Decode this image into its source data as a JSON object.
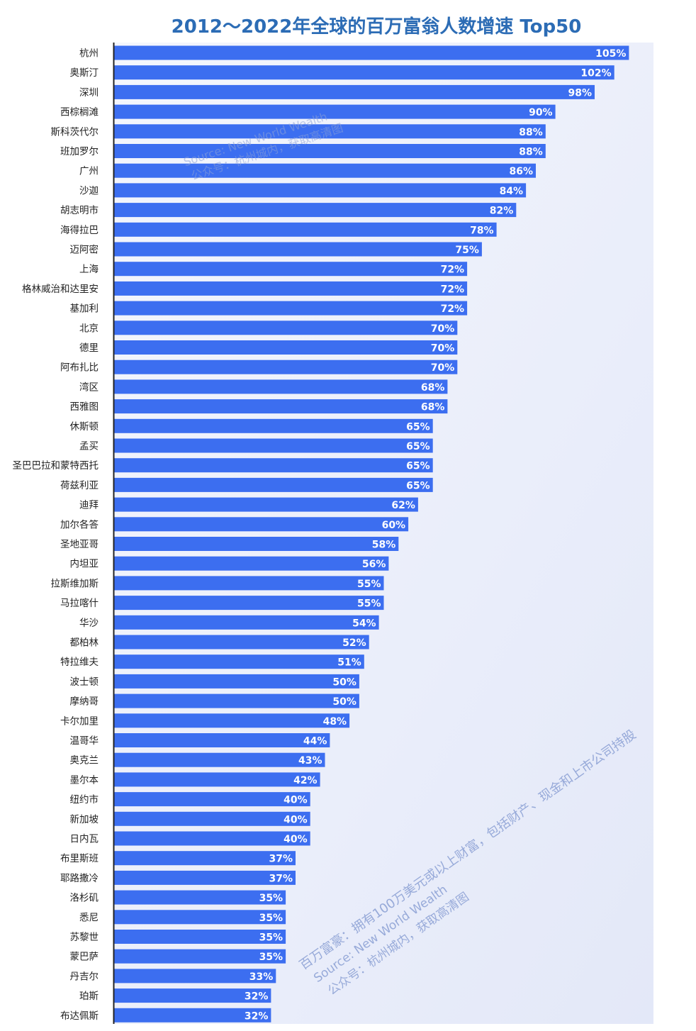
{
  "chart_data": {
    "type": "bar",
    "orientation": "horizontal",
    "title": "2012～2022年全球的百万富翁人数增速 Top50",
    "categories": [
      "杭州",
      "奥斯汀",
      "深圳",
      "西棕榈滩",
      "斯科茨代尔",
      "班加罗尔",
      "广州",
      "沙迦",
      "胡志明市",
      "海得拉巴",
      "迈阿密",
      "上海",
      "格林威治和达里安",
      "基加利",
      "北京",
      "德里",
      "阿布扎比",
      "湾区",
      "西雅图",
      "休斯顿",
      "孟买",
      "圣巴巴拉和蒙特西托",
      "荷兹利亚",
      "迪拜",
      "加尔各答",
      "圣地亚哥",
      "内坦亚",
      "拉斯维加斯",
      "马拉喀什",
      "华沙",
      "都柏林",
      "特拉维夫",
      "波士顿",
      "摩纳哥",
      "卡尔加里",
      "温哥华",
      "奥克兰",
      "墨尔本",
      "纽约市",
      "新加坡",
      "日内瓦",
      "布里斯班",
      "耶路撒冷",
      "洛杉矶",
      "悉尼",
      "苏黎世",
      "蒙巴萨",
      "丹吉尔",
      "珀斯",
      "布达佩斯"
    ],
    "values": [
      105,
      102,
      98,
      90,
      88,
      88,
      86,
      84,
      82,
      78,
      75,
      72,
      72,
      72,
      70,
      70,
      70,
      68,
      68,
      65,
      65,
      65,
      65,
      62,
      60,
      58,
      56,
      55,
      55,
      54,
      52,
      51,
      50,
      50,
      48,
      44,
      43,
      42,
      40,
      40,
      40,
      37,
      37,
      35,
      35,
      35,
      35,
      33,
      32,
      32
    ],
    "value_labels": [
      "105%",
      "102%",
      "98%",
      "90%",
      "88%",
      "88%",
      "86%",
      "84%",
      "82%",
      "78%",
      "75%",
      "72%",
      "72%",
      "72%",
      "70%",
      "70%",
      "70%",
      "68%",
      "68%",
      "65%",
      "65%",
      "65%",
      "65%",
      "62%",
      "60%",
      "58%",
      "56%",
      "55%",
      "55%",
      "54%",
      "52%",
      "51%",
      "50%",
      "50%",
      "48%",
      "44%",
      "43%",
      "42%",
      "40%",
      "40%",
      "40%",
      "37%",
      "37%",
      "35%",
      "35%",
      "35%",
      "35%",
      "33%",
      "32%",
      "32%"
    ],
    "xlim": [
      0,
      110
    ],
    "grid": false,
    "legend": "none",
    "colors": {
      "bar": "#3c6ef0",
      "title": "#2c6cb5",
      "watermark": "#8fa3d6",
      "panel_top": "#f4f6fd",
      "panel_bottom": "#e3e8f8"
    }
  },
  "watermarks": {
    "top": [
      "Source: New World Wealth",
      "公众号：杭州城内，获取高清图"
    ],
    "bottom": [
      "百万富豪：拥有100万美元或以上财富，包括财产、现金和上市公司持股",
      "Source: New World Wealth",
      "公众号：杭州城内，获取高清图"
    ]
  }
}
